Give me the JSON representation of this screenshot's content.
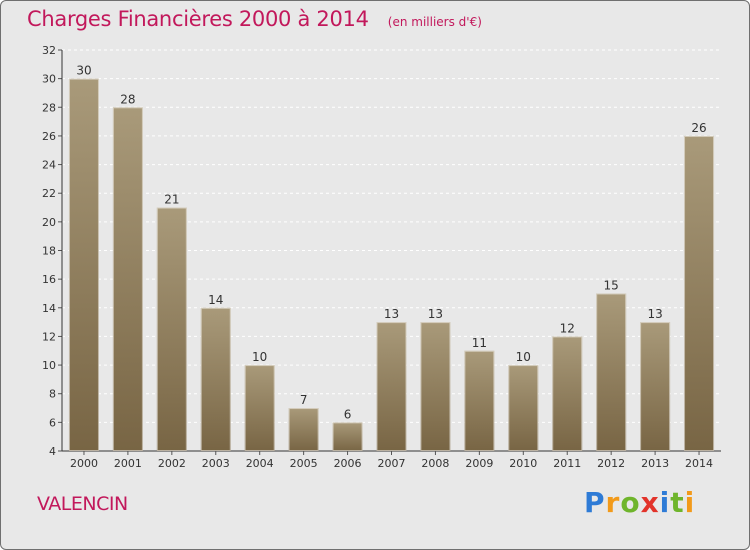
{
  "header": {
    "title": "Charges Financières 2000 à 2014",
    "unit": "(en milliers d'€)"
  },
  "footer": {
    "place": "VALENCIN",
    "logo": "Proxiti"
  },
  "colors": {
    "title": "#c2185b",
    "bar_top": "#a99a7a",
    "bar_bottom": "#786544",
    "logo_letters": [
      "#2e7bd6",
      "#f29a1a",
      "#6fb52c",
      "#e2332a",
      "#2e7bd6",
      "#6fb52c",
      "#f29a1a"
    ]
  },
  "chart_data": {
    "type": "bar",
    "title": "Charges Financières 2000 à 2014",
    "subtitle": "(en milliers d'€)",
    "categories": [
      "2000",
      "2001",
      "2002",
      "2003",
      "2004",
      "2005",
      "2006",
      "2007",
      "2008",
      "2009",
      "2010",
      "2011",
      "2012",
      "2013",
      "2014"
    ],
    "values": [
      30,
      28,
      21,
      14,
      10,
      7,
      6,
      13,
      13,
      11,
      10,
      12,
      15,
      13,
      26
    ],
    "ylim": [
      4,
      32
    ],
    "yticks": [
      4,
      6,
      8,
      10,
      12,
      14,
      16,
      18,
      20,
      22,
      24,
      26,
      28,
      30,
      32
    ],
    "grid": "horizontal",
    "data_labels": true
  }
}
